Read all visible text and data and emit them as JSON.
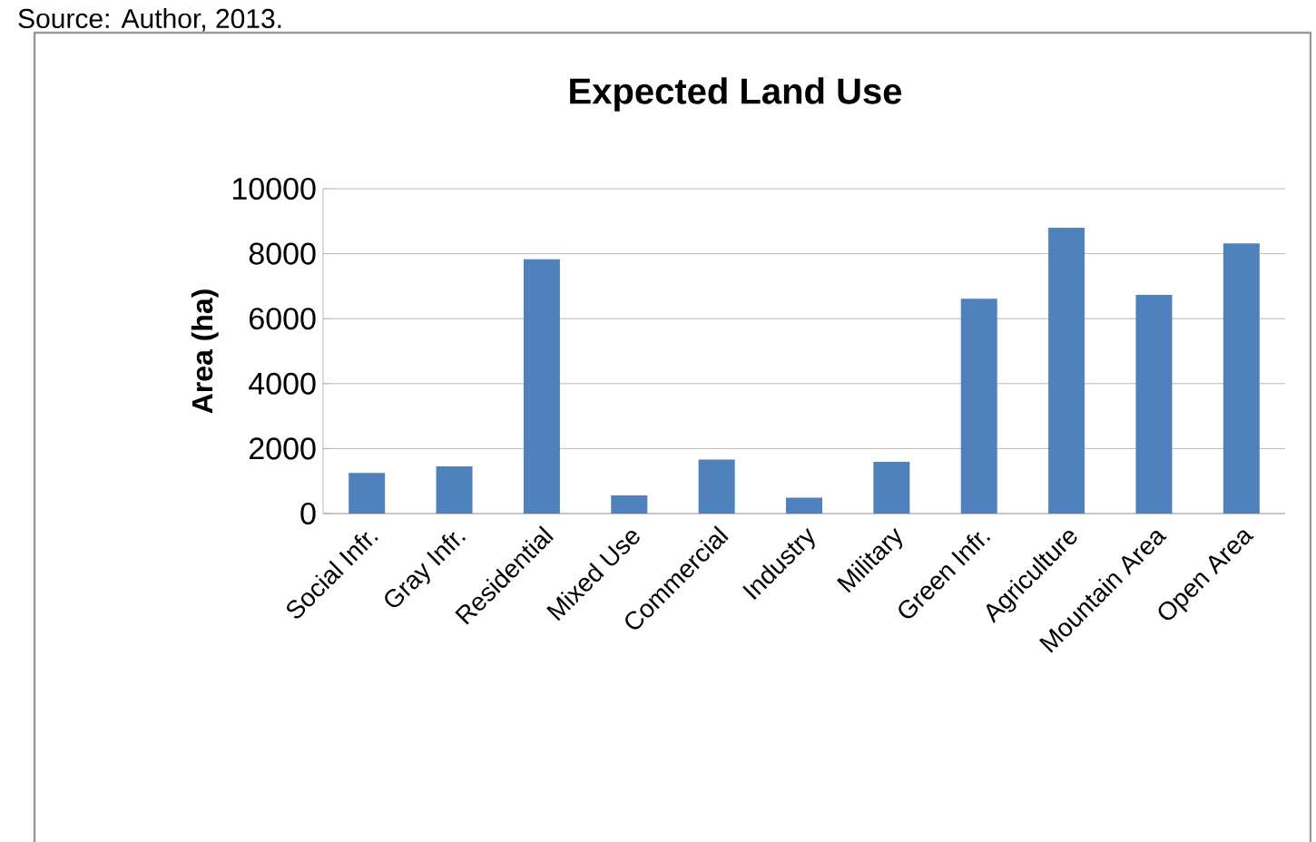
{
  "chart_data": {
    "type": "bar",
    "title": "Expected Land Use",
    "ylabel": "Area (ha)",
    "categories": [
      "Social Infr.",
      "Gray Infr.",
      "Residential",
      "Mixed Use",
      "Commercial",
      "Industry",
      "Military",
      "Green Infr.",
      "Agriculture",
      "Mountain  Area",
      "Open Area"
    ],
    "values": [
      1250,
      1450,
      7830,
      560,
      1660,
      490,
      1590,
      6610,
      8800,
      6730,
      8320
    ],
    "color": "#4f81bd",
    "ylim": [
      0,
      10000
    ],
    "yticks": [
      0,
      2000,
      4000,
      6000,
      8000,
      10000
    ],
    "grid": "y",
    "annotations": [
      "Source: Author, 2013."
    ]
  }
}
